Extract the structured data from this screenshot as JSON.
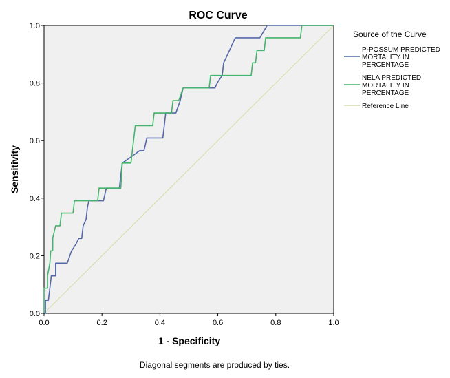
{
  "chart_data": {
    "type": "line",
    "title": "ROC Curve",
    "xlabel": "1 - Specificity",
    "ylabel": "Sensitivity",
    "xlim": [
      0,
      1
    ],
    "ylim": [
      0,
      1
    ],
    "x_ticks": [
      0,
      0.2,
      0.4,
      0.6,
      0.8,
      1
    ],
    "x_tick_labels": [
      "0.0",
      "0.2",
      "0.4",
      "0.6",
      "0.8",
      "1.0"
    ],
    "y_ticks": [
      0,
      0.2,
      0.4,
      0.6,
      0.8,
      1
    ],
    "y_tick_labels": [
      "0.0",
      "0.2",
      "0.4",
      "0.6",
      "0.8",
      "1.0"
    ],
    "grid": false,
    "background_color": "#f0f0f0",
    "legend": {
      "title": "Source of the Curve",
      "position": "right"
    },
    "series": [
      {
        "name": "P-POSSUM PREDICTED MORTALITY IN PERCENTAGE",
        "legend_lines": [
          "P-POSSUM PREDICTED",
          "MORTALITY IN",
          "PERCENTAGE"
        ],
        "color": "#5468a9",
        "points": [
          [
            0,
            0
          ],
          [
            0.005,
            0
          ],
          [
            0.005,
            0.045
          ],
          [
            0.015,
            0.045
          ],
          [
            0.02,
            0.087
          ],
          [
            0.025,
            0.13
          ],
          [
            0.04,
            0.13
          ],
          [
            0.04,
            0.174
          ],
          [
            0.08,
            0.174
          ],
          [
            0.095,
            0.217
          ],
          [
            0.11,
            0.24
          ],
          [
            0.12,
            0.26
          ],
          [
            0.13,
            0.26
          ],
          [
            0.135,
            0.304
          ],
          [
            0.145,
            0.326
          ],
          [
            0.15,
            0.37
          ],
          [
            0.155,
            0.391
          ],
          [
            0.205,
            0.391
          ],
          [
            0.215,
            0.435
          ],
          [
            0.26,
            0.435
          ],
          [
            0.27,
            0.522
          ],
          [
            0.3,
            0.543
          ],
          [
            0.33,
            0.565
          ],
          [
            0.345,
            0.565
          ],
          [
            0.355,
            0.609
          ],
          [
            0.41,
            0.609
          ],
          [
            0.415,
            0.652
          ],
          [
            0.42,
            0.696
          ],
          [
            0.455,
            0.696
          ],
          [
            0.47,
            0.739
          ],
          [
            0.48,
            0.783
          ],
          [
            0.59,
            0.783
          ],
          [
            0.6,
            0.804
          ],
          [
            0.615,
            0.826
          ],
          [
            0.62,
            0.87
          ],
          [
            0.64,
            0.913
          ],
          [
            0.66,
            0.957
          ],
          [
            0.745,
            0.957
          ],
          [
            0.77,
            1.0
          ],
          [
            0.845,
            1.0
          ],
          [
            1.0,
            1.0
          ]
        ]
      },
      {
        "name": "NELA PREDICTED MORTALITY IN PERCENTAGE",
        "legend_lines": [
          "NELA PREDICTED",
          "MORTALITY IN",
          "PERCENTAGE"
        ],
        "color": "#45b36c",
        "points": [
          [
            0,
            0
          ],
          [
            0,
            0.087
          ],
          [
            0.012,
            0.087
          ],
          [
            0.012,
            0.13
          ],
          [
            0.02,
            0.174
          ],
          [
            0.023,
            0.217
          ],
          [
            0.03,
            0.217
          ],
          [
            0.03,
            0.261
          ],
          [
            0.04,
            0.304
          ],
          [
            0.055,
            0.304
          ],
          [
            0.06,
            0.348
          ],
          [
            0.1,
            0.348
          ],
          [
            0.105,
            0.391
          ],
          [
            0.185,
            0.391
          ],
          [
            0.19,
            0.435
          ],
          [
            0.265,
            0.435
          ],
          [
            0.27,
            0.522
          ],
          [
            0.3,
            0.522
          ],
          [
            0.305,
            0.565
          ],
          [
            0.31,
            0.609
          ],
          [
            0.315,
            0.652
          ],
          [
            0.375,
            0.652
          ],
          [
            0.38,
            0.696
          ],
          [
            0.44,
            0.696
          ],
          [
            0.445,
            0.739
          ],
          [
            0.465,
            0.739
          ],
          [
            0.48,
            0.783
          ],
          [
            0.57,
            0.783
          ],
          [
            0.575,
            0.826
          ],
          [
            0.715,
            0.826
          ],
          [
            0.72,
            0.87
          ],
          [
            0.73,
            0.87
          ],
          [
            0.735,
            0.913
          ],
          [
            0.76,
            0.913
          ],
          [
            0.765,
            0.957
          ],
          [
            0.885,
            0.957
          ],
          [
            0.89,
            1.0
          ],
          [
            1.0,
            1.0
          ]
        ]
      },
      {
        "name": "Reference Line",
        "legend_lines": [
          "Reference Line"
        ],
        "color": "#d6dca2",
        "points": [
          [
            0,
            0
          ],
          [
            1,
            1
          ]
        ]
      }
    ],
    "footnote": "Diagonal segments are produced by ties."
  }
}
